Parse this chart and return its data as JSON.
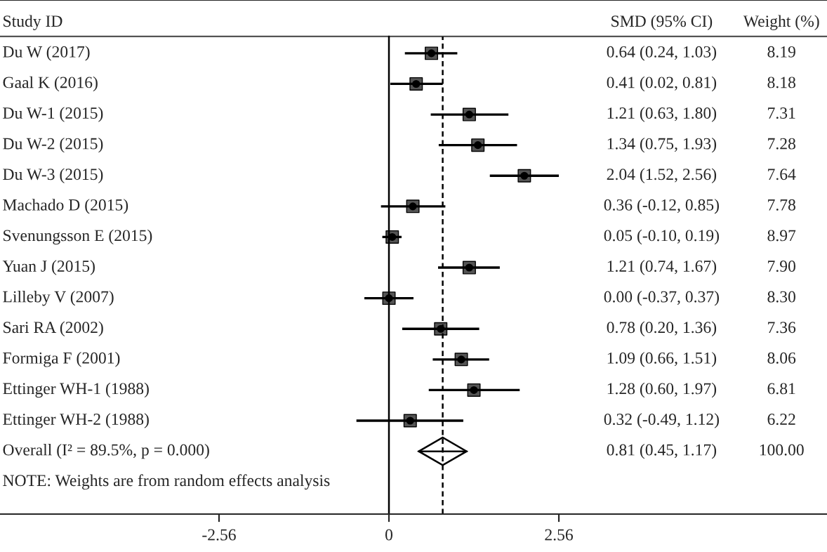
{
  "chart_data": {
    "type": "scatter",
    "orientation": "horizontal",
    "ylabel": "Study ID",
    "categories": [
      "Du W (2017)",
      "Gaal K (2016)",
      "Du W-1 (2015)",
      "Du W-2 (2015)",
      "Du W-3 (2015)",
      "Machado D (2015)",
      "Svenungsson E (2015)",
      "Yuan J (2015)",
      "Lilleby V (2007)",
      "Sari RA (2002)",
      "Formiga F (2001)",
      "Ettinger WH-1 (1988)",
      "Ettinger WH-2 (1988)",
      "Overall (I² = 89.5%, p = 0.000)"
    ],
    "series": [
      {
        "color": "#555555",
        "marker": "square",
        "values": [
          0.64,
          0.41,
          1.21,
          1.34,
          2.04,
          0.36,
          0.05,
          1.21,
          0.0,
          0.78,
          1.09,
          1.28,
          0.32,
          null
        ],
        "errors": [
          [
            0.24,
            1.03
          ],
          [
            0.02,
            0.81
          ],
          [
            0.63,
            1.8
          ],
          [
            0.75,
            1.93
          ],
          [
            1.52,
            2.56
          ],
          [
            -0.12,
            0.85
          ],
          [
            -0.1,
            0.19
          ],
          [
            0.74,
            1.67
          ],
          [
            -0.37,
            0.37
          ],
          [
            0.2,
            1.36
          ],
          [
            0.66,
            1.51
          ],
          [
            0.6,
            1.97
          ],
          [
            -0.49,
            1.12
          ],
          null
        ]
      },
      {
        "color": "#000000",
        "marker": "diamond",
        "values": [
          null,
          null,
          null,
          null,
          null,
          null,
          null,
          null,
          null,
          null,
          null,
          null,
          null,
          0.81
        ],
        "errors": [
          null,
          null,
          null,
          null,
          null,
          null,
          null,
          null,
          null,
          null,
          null,
          null,
          null,
          [
            0.45,
            1.17
          ]
        ]
      }
    ],
    "annotations": [
      "SMD (95% CI)",
      "Weight (%)",
      "0.64 (0.24, 1.03)",
      "0.41 (0.02, 0.81)",
      "1.21 (0.63, 1.80)",
      "1.34 (0.75, 1.93)",
      "2.04 (1.52, 2.56)",
      "0.36 (-0.12, 0.85)",
      "0.05 (-0.10, 0.19)",
      "1.21 (0.74, 1.67)",
      "0.00 (-0.37, 0.37)",
      "0.78 (0.20, 1.36)",
      "1.09 (0.66, 1.51)",
      "1.28 (0.60, 1.97)",
      "0.32 (-0.49, 1.12)",
      "0.81 (0.45, 1.17)",
      "8.19",
      "8.18",
      "7.31",
      "7.28",
      "7.64",
      "7.78",
      "8.97",
      "7.90",
      "8.30",
      "7.36",
      "8.06",
      "6.81",
      "6.22",
      "100.00",
      "NOTE: Weights are from random effects analysis"
    ],
    "ref_lines": [
      {
        "axis": "x",
        "value": 0,
        "color": "#000000",
        "line_style": "solid"
      },
      {
        "axis": "x",
        "value": 0.81,
        "color": "#000000",
        "line_style": "dashed"
      }
    ],
    "xlim": [
      -5.86,
      6.6
    ],
    "xticks": [
      -2.56,
      0,
      2.56
    ],
    "grid": false,
    "legend": false
  }
}
